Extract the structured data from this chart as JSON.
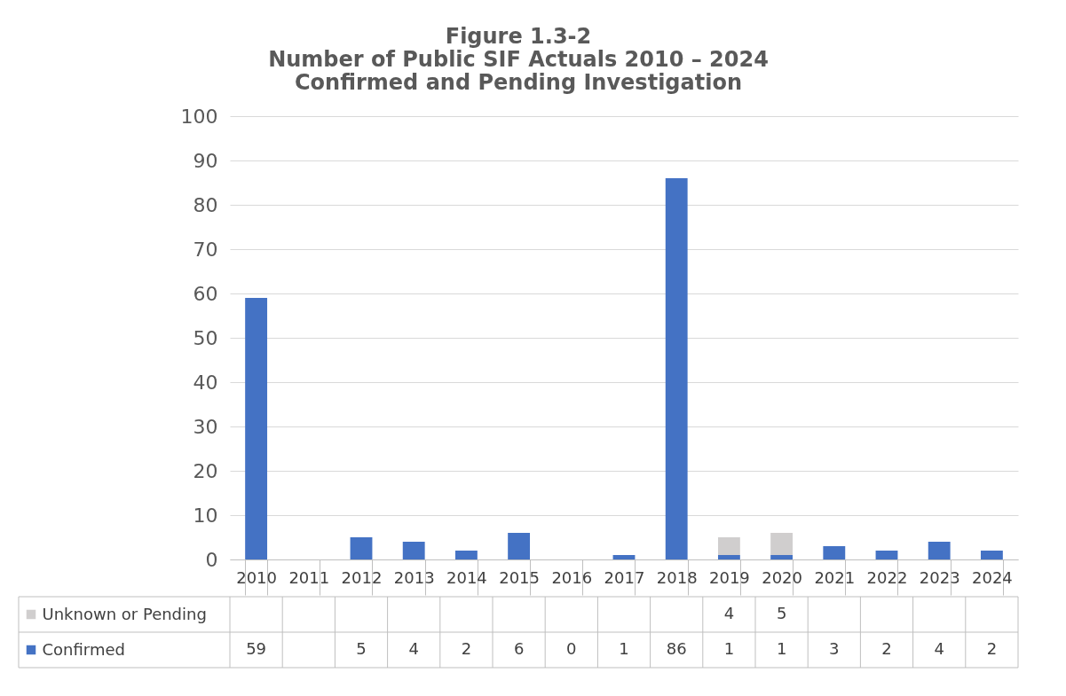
{
  "chart_data": {
    "type": "bar",
    "title": "Figure 1.3-2\nNumber of Public SIF Actuals 2010 – 2024\nConfirmed and Pending Investigation",
    "categories": [
      "2010",
      "2011",
      "2012",
      "2013",
      "2014",
      "2015",
      "2016",
      "2017",
      "2018",
      "2019",
      "2020",
      "2021",
      "2022",
      "2023",
      "2024"
    ],
    "series": [
      {
        "name": "Confirmed",
        "color": "#4472c4",
        "values": [
          59,
          null,
          5,
          4,
          2,
          6,
          0,
          1,
          86,
          1,
          1,
          3,
          2,
          4,
          2
        ]
      },
      {
        "name": "Unknown or Pending",
        "color": "#d0cece",
        "values": [
          null,
          null,
          null,
          null,
          null,
          null,
          null,
          null,
          null,
          4,
          5,
          null,
          null,
          null,
          null
        ]
      }
    ],
    "stacked": true,
    "ylim": [
      0,
      100
    ],
    "yticks": [
      0,
      10,
      20,
      30,
      40,
      50,
      60,
      70,
      80,
      90,
      100
    ],
    "grid": "y",
    "legend": "bottom",
    "data_labels": true
  }
}
